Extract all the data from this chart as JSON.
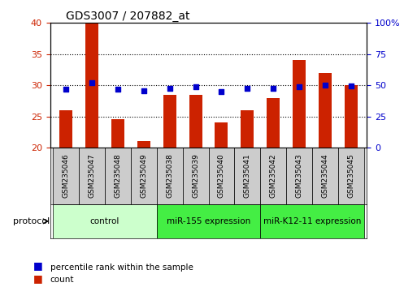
{
  "title": "GDS3007 / 207882_at",
  "samples": [
    "GSM235046",
    "GSM235047",
    "GSM235048",
    "GSM235049",
    "GSM235038",
    "GSM235039",
    "GSM235040",
    "GSM235041",
    "GSM235042",
    "GSM235043",
    "GSM235044",
    "GSM235045"
  ],
  "count_values": [
    26,
    40,
    24.5,
    21,
    28.5,
    28.5,
    24,
    26,
    28,
    34,
    32,
    30
  ],
  "percentile_values": [
    47,
    52,
    47,
    45.5,
    47.5,
    48.5,
    45,
    47.5,
    47.5,
    49,
    50,
    49.5
  ],
  "bar_color": "#cc2200",
  "dot_color": "#0000cc",
  "ylim_left": [
    20,
    40
  ],
  "ylim_right": [
    0,
    100
  ],
  "yticks_left": [
    20,
    25,
    30,
    35,
    40
  ],
  "yticks_right": [
    0,
    25,
    50,
    75,
    100
  ],
  "ytick_labels_right": [
    "0",
    "25",
    "50",
    "75",
    "100%"
  ],
  "groups": [
    {
      "label": "control",
      "start": 0,
      "end": 4,
      "color": "#ccffcc"
    },
    {
      "label": "miR-155 expression",
      "start": 4,
      "end": 8,
      "color": "#00ff44"
    },
    {
      "label": "miR-K12-11 expression",
      "start": 8,
      "end": 12,
      "color": "#00ff44"
    }
  ],
  "protocol_label": "protocol",
  "legend_count_label": "count",
  "legend_percentile_label": "percentile rank within the sample",
  "grid_color": "#000000",
  "bg_color": "#ffffff",
  "bar_bottom": 20,
  "bar_width": 0.5
}
